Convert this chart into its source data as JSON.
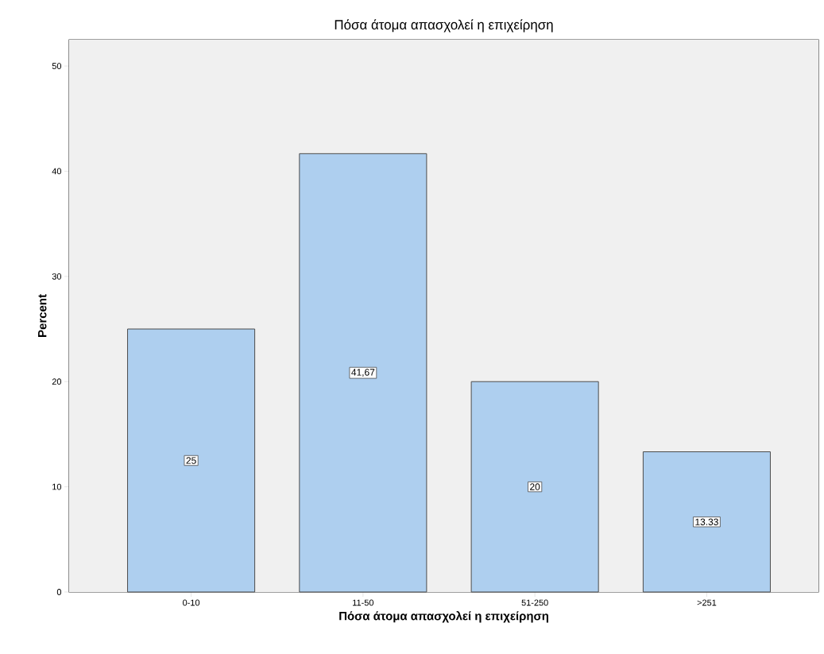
{
  "chart_data": {
    "type": "bar",
    "title": "Πόσα άτομα απασχολεί η επιχείρηση",
    "xlabel": "Πόσα άτομα απασχολεί η επιχείρηση",
    "ylabel": "Percent",
    "categories": [
      "0-10",
      "11-50",
      "51-250",
      ">251"
    ],
    "values": [
      25,
      41.67,
      20,
      13.33
    ],
    "value_labels": [
      "25",
      "41,67",
      "20",
      "13.33"
    ],
    "color": "#aecfef",
    "ylim": [
      0,
      52.5
    ],
    "yticks": [
      0,
      10,
      20,
      30,
      40,
      50
    ]
  }
}
